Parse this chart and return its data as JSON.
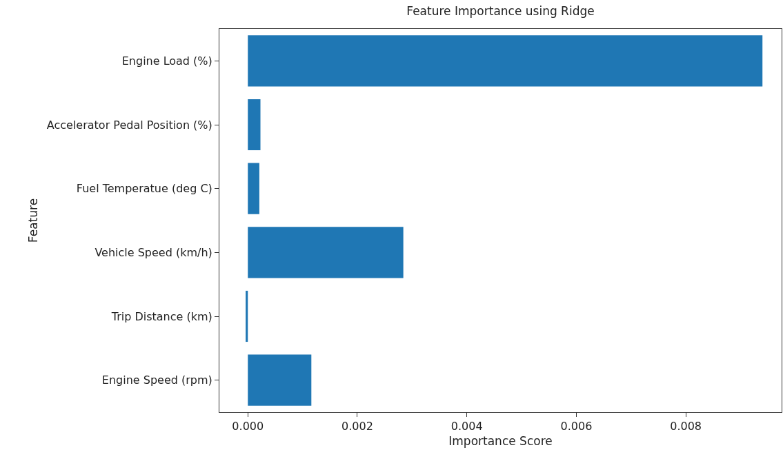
{
  "chart_data": {
    "type": "bar",
    "orientation": "horizontal",
    "title": "Feature Importance using Ridge",
    "xlabel": "Importance Score",
    "ylabel": "Feature",
    "categories": [
      "Engine Load (%)",
      "Accelerator Pedal Position (%)",
      "Fuel Temperatue (deg C)",
      "Vehicle Speed (km/h)",
      "Trip Distance (km)",
      "Engine Speed (rpm)"
    ],
    "values": [
      0.0094,
      0.00023,
      0.00021,
      0.00284,
      -4e-05,
      0.00116
    ],
    "color": "#1f77b4",
    "xlim": [
      -0.00052,
      0.00975
    ],
    "xticks": [
      {
        "value": 0,
        "label": "0.000"
      },
      {
        "value": 0.002,
        "label": "0.002"
      },
      {
        "value": 0.004,
        "label": "0.004"
      },
      {
        "value": 0.006,
        "label": "0.006"
      },
      {
        "value": 0.008,
        "label": "0.008"
      }
    ],
    "grid": false
  }
}
